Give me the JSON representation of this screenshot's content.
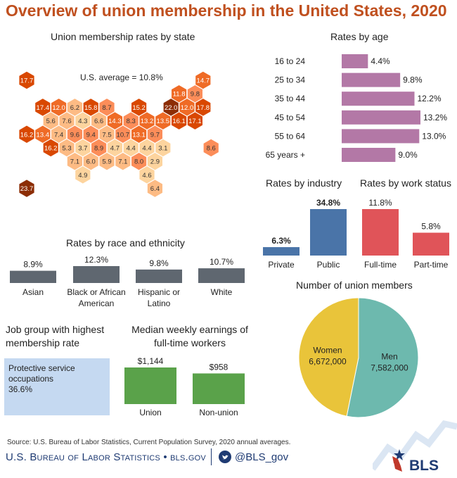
{
  "title": "Overview of union membership in the United States, 2020",
  "colors": {
    "title": "#c0501f",
    "age": "#b378a6",
    "private": "#4a74a8",
    "public": "#4a74a8",
    "fulltime": "#e05459",
    "parttime": "#e05459",
    "race": "#5f6770",
    "earnings": "#5aa24a",
    "women": "#e9c43a",
    "men": "#6db9ae",
    "jobbox": "#c5d9f1"
  },
  "state_map": {
    "title": "Union membership rates by state",
    "average_label": "U.S. average = 10.8%",
    "hex_colors": [
      "#fdd49e",
      "#fdbb84",
      "#fc8d59",
      "#ef6b26",
      "#d94801",
      "#8c2d04"
    ],
    "cells": [
      {
        "r": 0,
        "c": 0,
        "v": "17.7"
      },
      {
        "r": 0,
        "c": 11,
        "v": "14.7"
      },
      {
        "r": 1,
        "c": 9,
        "v": "11.8"
      },
      {
        "r": 1,
        "c": 10,
        "v": "9.8"
      },
      {
        "r": 2,
        "c": 1,
        "v": "17.4"
      },
      {
        "r": 2,
        "c": 2,
        "v": "12.0"
      },
      {
        "r": 2,
        "c": 3,
        "v": "6.2"
      },
      {
        "r": 2,
        "c": 4,
        "v": "15.8"
      },
      {
        "r": 2,
        "c": 5,
        "v": "8.7"
      },
      {
        "r": 2,
        "c": 7,
        "v": "15.2"
      },
      {
        "r": 2,
        "c": 9,
        "v": "22.0"
      },
      {
        "r": 2,
        "c": 10,
        "v": "12.0"
      },
      {
        "r": 2,
        "c": 11,
        "v": "17.8"
      },
      {
        "r": 3,
        "c": 1,
        "v": "5.6"
      },
      {
        "r": 3,
        "c": 2,
        "v": "7.6"
      },
      {
        "r": 3,
        "c": 3,
        "v": "4.3"
      },
      {
        "r": 3,
        "c": 4,
        "v": "6.6"
      },
      {
        "r": 3,
        "c": 5,
        "v": "14.3"
      },
      {
        "r": 3,
        "c": 6,
        "v": "8.3"
      },
      {
        "r": 3,
        "c": 7,
        "v": "13.2"
      },
      {
        "r": 3,
        "c": 8,
        "v": "13.5"
      },
      {
        "r": 3,
        "c": 9,
        "v": "16.1"
      },
      {
        "r": 3,
        "c": 10,
        "v": "17.1"
      },
      {
        "r": 4,
        "c": 0,
        "v": "16.2"
      },
      {
        "r": 4,
        "c": 1,
        "v": "13.4"
      },
      {
        "r": 4,
        "c": 2,
        "v": "7.4"
      },
      {
        "r": 4,
        "c": 3,
        "v": "9.6"
      },
      {
        "r": 4,
        "c": 4,
        "v": "9.4"
      },
      {
        "r": 4,
        "c": 5,
        "v": "7.5"
      },
      {
        "r": 4,
        "c": 6,
        "v": "10.7"
      },
      {
        "r": 4,
        "c": 7,
        "v": "13.1"
      },
      {
        "r": 4,
        "c": 8,
        "v": "9.7"
      },
      {
        "r": 5,
        "c": 1,
        "v": "16.2"
      },
      {
        "r": 5,
        "c": 2,
        "v": "5.3"
      },
      {
        "r": 5,
        "c": 3,
        "v": "3.7"
      },
      {
        "r": 5,
        "c": 4,
        "v": "8.9"
      },
      {
        "r": 5,
        "c": 5,
        "v": "4.7"
      },
      {
        "r": 5,
        "c": 6,
        "v": "4.4"
      },
      {
        "r": 5,
        "c": 7,
        "v": "4.4"
      },
      {
        "r": 5,
        "c": 8,
        "v": "3.1"
      },
      {
        "r": 5,
        "c": 11,
        "v": "8.6"
      },
      {
        "r": 6,
        "c": 3,
        "v": "7.1"
      },
      {
        "r": 6,
        "c": 4,
        "v": "6.0"
      },
      {
        "r": 6,
        "c": 5,
        "v": "5.9"
      },
      {
        "r": 6,
        "c": 6,
        "v": "7.1"
      },
      {
        "r": 6,
        "c": 7,
        "v": "8.0"
      },
      {
        "r": 6,
        "c": 8,
        "v": "2.9"
      },
      {
        "r": 7,
        "c": 3,
        "v": "4.9"
      },
      {
        "r": 7,
        "c": 7,
        "v": "4.6"
      },
      {
        "r": 8,
        "c": 0,
        "v": "23.7"
      },
      {
        "r": 8,
        "c": 8,
        "v": "6.4"
      }
    ]
  },
  "chart_data": [
    {
      "type": "bar",
      "title": "Rates by age",
      "categories": [
        "16 to 24",
        "25 to 34",
        "35 to 44",
        "45 to 54",
        "55 to 64",
        "65 years +"
      ],
      "values": [
        4.4,
        9.8,
        12.2,
        13.2,
        13.0,
        9.0
      ],
      "value_labels": [
        "4.4%",
        "9.8%",
        "12.2%",
        "13.2%",
        "13.0%",
        "9.0%"
      ],
      "orientation": "horizontal",
      "xlim": [
        0,
        13.2
      ]
    },
    {
      "type": "bar",
      "title": "Rates by industry",
      "categories": [
        "Private",
        "Public"
      ],
      "values": [
        6.3,
        34.8
      ],
      "value_labels": [
        "6.3%",
        "34.8%"
      ],
      "ylim": [
        0,
        34.8
      ]
    },
    {
      "type": "bar",
      "title": "Rates by work status",
      "categories": [
        "Full-time",
        "Part-time"
      ],
      "values": [
        11.8,
        5.8
      ],
      "value_labels": [
        "11.8%",
        "5.8%"
      ],
      "ylim": [
        0,
        11.8
      ]
    },
    {
      "type": "bar",
      "title": "Rates by race and ethnicity",
      "categories": [
        "Asian",
        "Black or African American",
        "Hispanic or Latino",
        "White"
      ],
      "category_lines": [
        [
          "Asian"
        ],
        [
          "Black or African",
          "American"
        ],
        [
          "Hispanic or",
          "Latino"
        ],
        [
          "White"
        ]
      ],
      "values": [
        8.9,
        12.3,
        9.8,
        10.7
      ],
      "value_labels": [
        "8.9%",
        "12.3%",
        "9.8%",
        "10.7%"
      ],
      "ylim": [
        0,
        12.3
      ]
    },
    {
      "type": "bar",
      "title": "Median weekly earnings of full-time workers",
      "title_lines": [
        "Median weekly earnings of",
        "full-time workers"
      ],
      "categories": [
        "Union",
        "Non-union"
      ],
      "values": [
        1144,
        958
      ],
      "value_labels": [
        "$1,144",
        "$958"
      ],
      "ylim": [
        0,
        1144
      ]
    },
    {
      "type": "pie",
      "title": "Number of union members",
      "slices": [
        {
          "name": "Women",
          "value": 6672000,
          "label": "6,672,000"
        },
        {
          "name": "Men",
          "value": 7582000,
          "label": "7,582,000"
        }
      ]
    }
  ],
  "job_group": {
    "title_line1": "Job group with highest",
    "title_line2": "membership rate",
    "line1": "Protective service",
    "line2": "occupations",
    "value": "36.6%"
  },
  "footer": {
    "source": "Source: U.S. Bureau of Labor Statistics, Current Population Survey, 2020 annual averages.",
    "agency": "U.S. Bureau of Labor Statistics",
    "site": "• bls.gov",
    "handle": "@BLS_gov",
    "logo_text": "BLS"
  }
}
